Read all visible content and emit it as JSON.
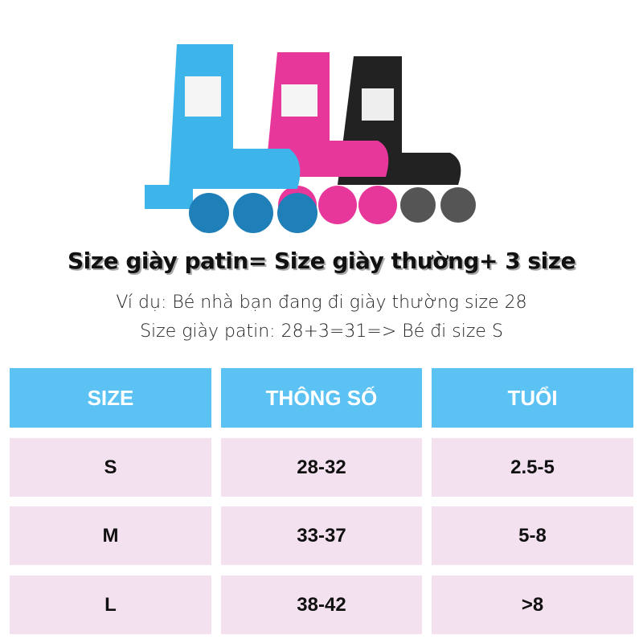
{
  "title": "Size giày patin= Size giày thường+ 3 size",
  "example_line1": "Ví dụ: Bé nhà bạn đang đi giày thường size 28",
  "example_line2": "Size giày patin: 28+3=31=> Bé đi size S",
  "colors": {
    "header": "#5bc2f3",
    "row": "#f3e1f0",
    "skates": [
      "#3db4ea",
      "#e8379a",
      "#222222"
    ]
  },
  "table": {
    "headers": [
      "SIZE",
      "THÔNG SỐ",
      "TUỔI"
    ],
    "rows": [
      [
        "S",
        "28-32",
        "2.5-5"
      ],
      [
        "M",
        "33-37",
        "5-8"
      ],
      [
        "L",
        "38-42",
        ">8"
      ]
    ]
  }
}
